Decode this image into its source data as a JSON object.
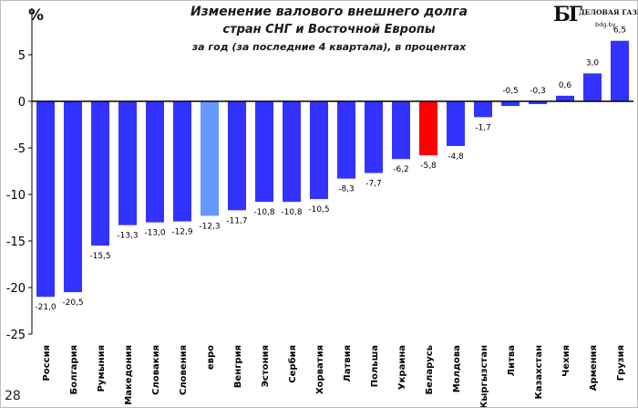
{
  "header": {
    "title_line1": "Изменение валового внешнего долга",
    "title_line2": "стран СНГ и Восточной Европы",
    "title_line3": "за год (за последние 4 квартала), в процентах",
    "unit_label": "%",
    "page_number": "28"
  },
  "logo": {
    "mark": "БГ",
    "name": "ДЕЛОВАЯ ГАЗЕТА",
    "site": "bdg.by"
  },
  "colors": {
    "default_bar": "#3333ff",
    "euro_bar": "#6699ff",
    "belarus_bar": "#ff0000",
    "zero_line": "#000000"
  },
  "chart_data": {
    "type": "bar",
    "title": "Изменение валового внешнего долга стран СНГ и Восточной Европы за год (за последние 4 квартала), в процентах",
    "ylabel": "%",
    "xlabel": "",
    "ylim": [
      -25,
      7
    ],
    "yticks": [
      5,
      0,
      -5,
      -10,
      -15,
      -20,
      -25
    ],
    "grid": false,
    "legend": "none",
    "categories": [
      "Россия",
      "Болгария",
      "Румыния",
      "Македония",
      "Словакия",
      "Словения",
      "евро",
      "Венгрия",
      "Эстония",
      "Сербия",
      "Хорватия",
      "Латвия",
      "Польша",
      "Украина",
      "Беларусь",
      "Молдова",
      "Кыргызстан",
      "Литва",
      "Казахстан",
      "Чехия",
      "Армения",
      "Грузия"
    ],
    "values": [
      -21.0,
      -20.5,
      -15.5,
      -13.3,
      -13.0,
      -12.9,
      -12.3,
      -11.7,
      -10.8,
      -10.8,
      -10.5,
      -8.3,
      -7.7,
      -6.2,
      -5.8,
      -4.8,
      -1.7,
      -0.5,
      -0.3,
      0.6,
      3.0,
      6.5
    ],
    "value_labels": [
      "-21,0",
      "-20,5",
      "-15,5",
      "-13,3",
      "-13,0",
      "-12,9",
      "-12,3",
      "-11,7",
      "-10,8",
      "-10,8",
      "-10,5",
      "-8,3",
      "-7,7",
      "-6,2",
      "-5,8",
      "-4,8",
      "-1,7",
      "-0,5",
      "-0,3",
      "0,6",
      "3,0",
      "6,5"
    ],
    "highlight": {
      "евро": "euro_bar",
      "Беларусь": "belarus_bar"
    }
  }
}
